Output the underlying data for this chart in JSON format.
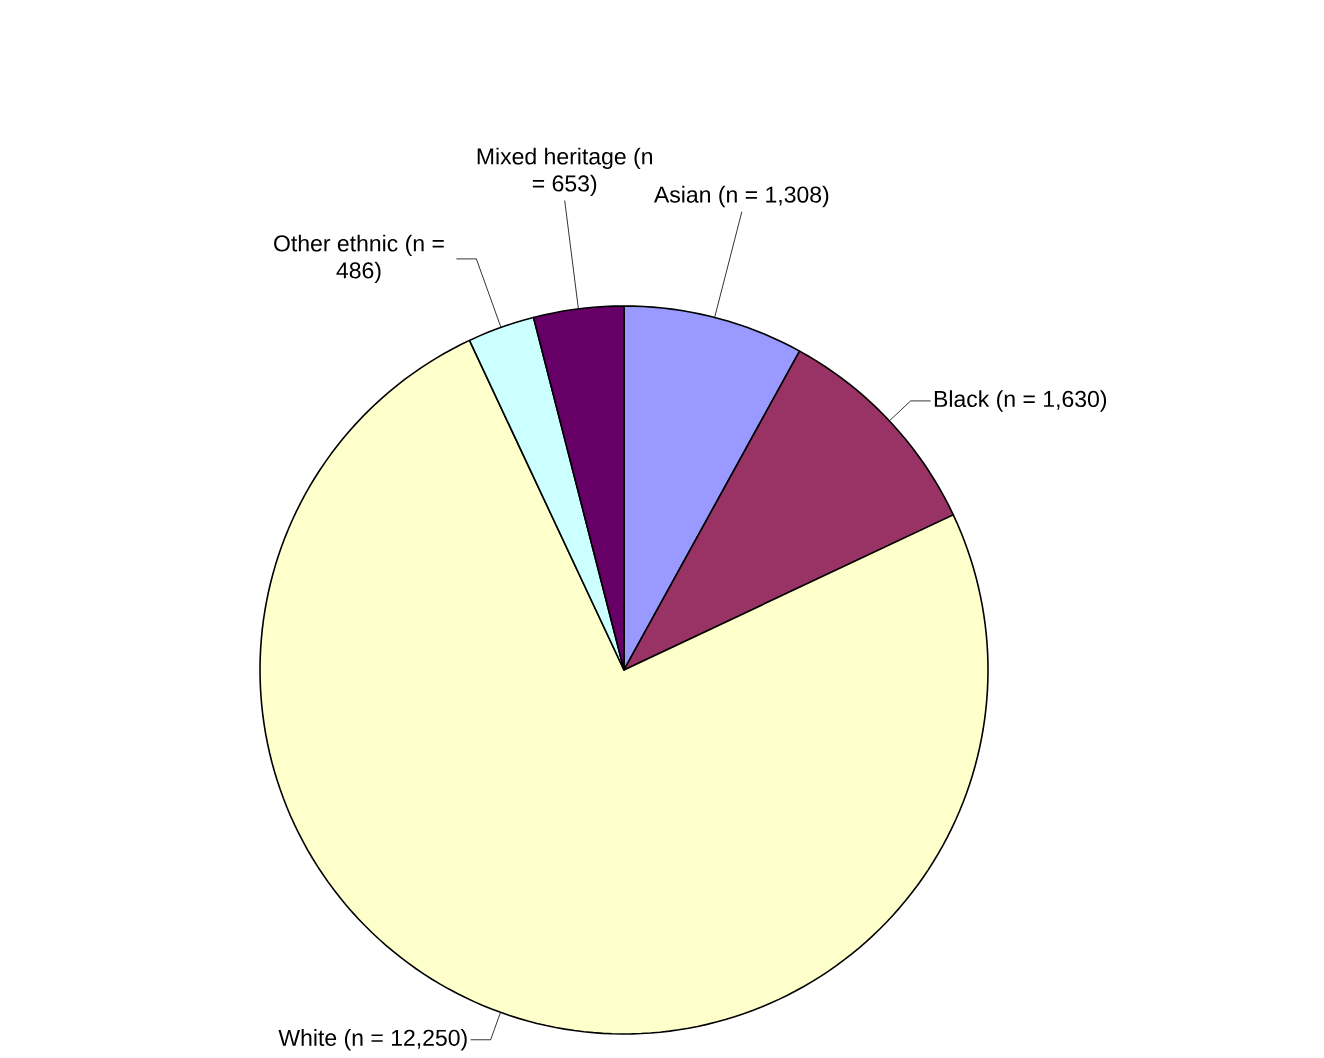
{
  "chart_data": {
    "type": "pie",
    "categories": [
      "Asian (n = 1,308)",
      "Black (n = 1,630)",
      "White (n = 12,250)",
      "Other ethnic (n = 486)",
      "Mixed heritage (n = 653)"
    ],
    "values": [
      1308,
      1630,
      12250,
      486,
      653
    ],
    "colors": [
      "#9999ff",
      "#993366",
      "#ffffcc",
      "#ccffff",
      "#660066"
    ]
  }
}
